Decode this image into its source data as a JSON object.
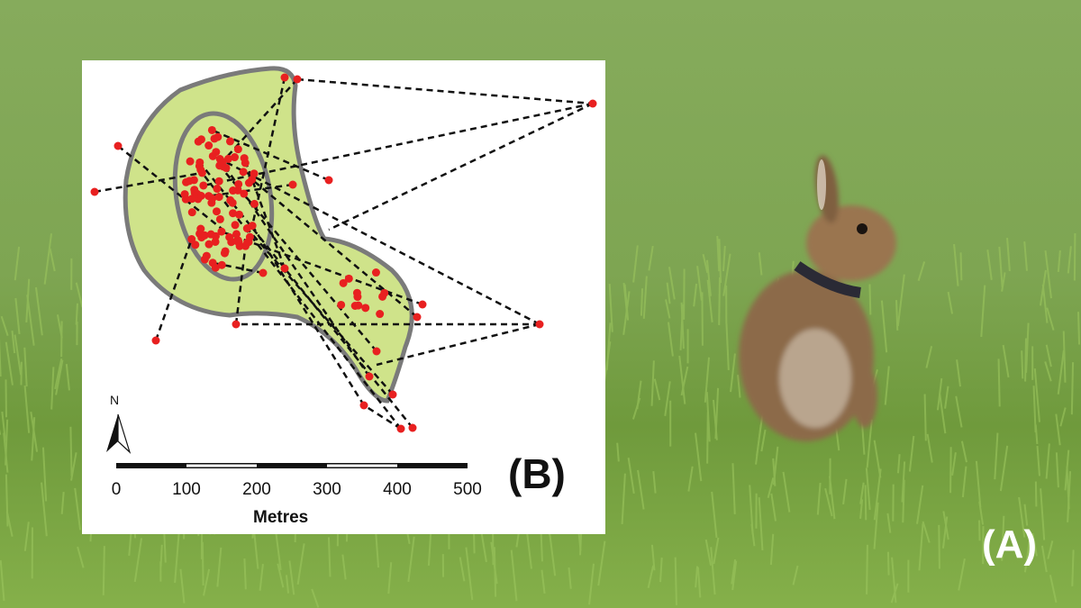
{
  "photo_label": "(A)",
  "map": {
    "panel_label": "(B)",
    "north_label": "N",
    "scale_ticks": [
      "0",
      "100",
      "200",
      "300",
      "400",
      "500"
    ],
    "scale_unit": "Metres",
    "colors": {
      "range": "#cfe38a",
      "outline": "#7a7a7a",
      "points": "#e82020",
      "tracks": "#111111"
    }
  }
}
